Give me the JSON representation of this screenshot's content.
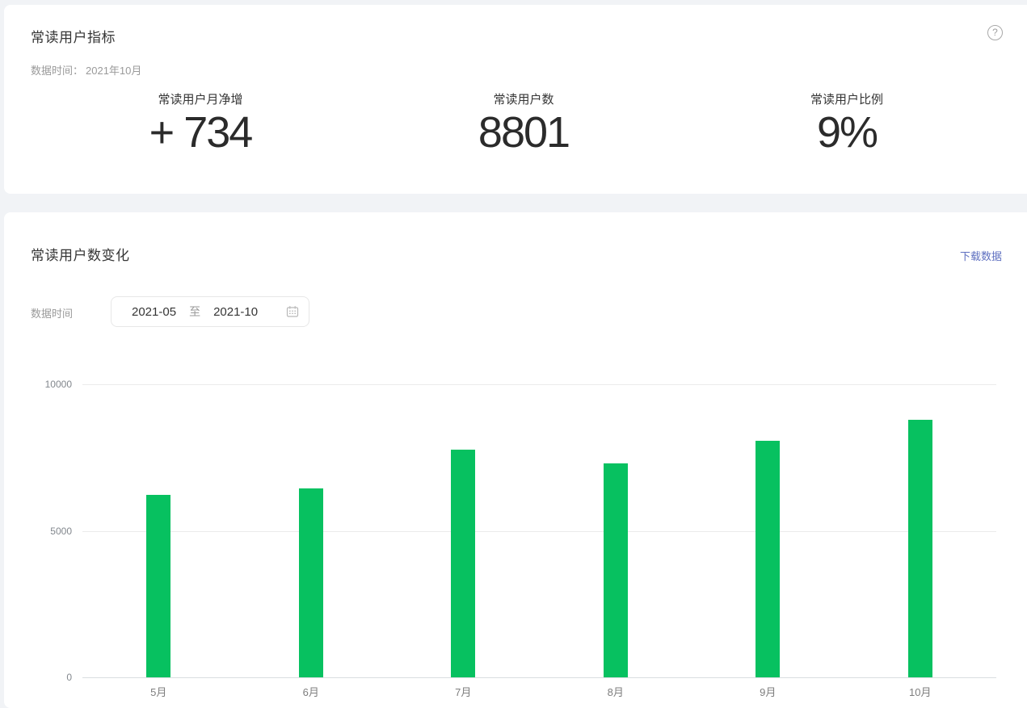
{
  "page_background": "#f1f3f6",
  "metrics_card": {
    "title": "常读用户指标",
    "data_time_label": "数据时间：",
    "data_time_value": "2021年10月",
    "help_icon": "question-circle-icon",
    "metrics": [
      {
        "label": "常读用户月净增",
        "value": "+ 734"
      },
      {
        "label": "常读用户数",
        "value": "8801"
      },
      {
        "label": "常读用户比例",
        "value": "9%"
      }
    ]
  },
  "trend_card": {
    "title": "常读用户数变化",
    "download_label": "下载数据",
    "link_color": "#5e6fc0",
    "filter_label": "数据时间",
    "date_range": {
      "start": "2021-05",
      "separator": "至",
      "end": "2021-10",
      "icon": "calendar-icon"
    }
  },
  "chart_data": {
    "type": "bar",
    "title": "常读用户数变化",
    "categories": [
      "5月",
      "6月",
      "7月",
      "8月",
      "9月",
      "10月"
    ],
    "values": [
      6230,
      6440,
      7760,
      7290,
      8067,
      8801
    ],
    "xlabel": "",
    "ylabel": "",
    "ylim": [
      0,
      10000
    ],
    "yticks": [
      0,
      5000,
      10000
    ],
    "bar_color": "#07C160",
    "grid": "horizontal",
    "legend": "none"
  }
}
